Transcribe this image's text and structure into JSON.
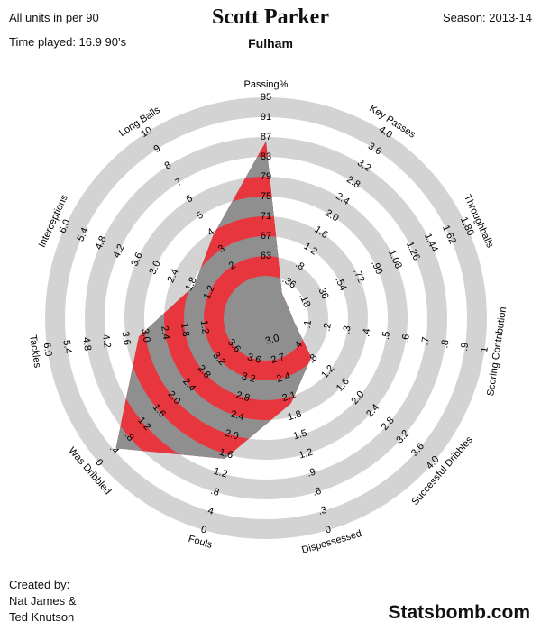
{
  "header": {
    "title": "Scott Parker",
    "team": "Fulham",
    "units_note": "All units in per 90",
    "time_played": "Time played: 16.9 90’s",
    "season": "Season: 2013-14"
  },
  "footer": {
    "credits": [
      "Created by:",
      "Nat James &",
      "Ted Knutson"
    ],
    "brand": "Statsbomb.com"
  },
  "colors": {
    "ring_light": "#d3d3d3",
    "shape_red": "#e8363f",
    "shape_gray": "#8f8f8f"
  },
  "chart_data": {
    "type": "radar",
    "title": "Scott Parker",
    "subtitle": "Fulham",
    "axes": [
      {
        "label": "Passing%",
        "ticks": [
          "63",
          "67",
          "71",
          "75",
          "79",
          "83",
          "87",
          "91",
          "95"
        ],
        "range": [
          59,
          95
        ],
        "value": 87
      },
      {
        "label": "Key Passes",
        "ticks": [
          ".36",
          ".8",
          "1.2",
          "1.6",
          "2.0",
          "2.4",
          "2.8",
          "3.2",
          "3.6",
          "4.0"
        ],
        "range": [
          0,
          4.0
        ],
        "value": 0.14
      },
      {
        "label": "Throughballs",
        "ticks": [
          ".18",
          ".36",
          ".54",
          ".72",
          ".90",
          "1.08",
          "1.26",
          "1.44",
          "1.62",
          "1.80"
        ],
        "range": [
          0,
          1.8
        ],
        "value": 0.02
      },
      {
        "label": "Scoring Contribution",
        "ticks": [
          ".1",
          ".2",
          ".3",
          ".4",
          ".5",
          ".6",
          ".7",
          ".8",
          ".9",
          "1"
        ],
        "range": [
          0,
          1
        ],
        "value": 0.03
      },
      {
        "label": "Successful Dribbles",
        "ticks": [
          ".4",
          ".8",
          "1.2",
          "1.6",
          "2.0",
          "2.4",
          "2.8",
          "3.2",
          "3.6",
          "4.0"
        ],
        "range": [
          0,
          4.0
        ],
        "value": 0.75
      },
      {
        "label": "Dispossessed",
        "ticks": [
          "3.0",
          "2.7",
          "2.4",
          "2.1",
          "1.8",
          "1.5",
          "1.2",
          ".9",
          ".6",
          ".3",
          "0"
        ],
        "range": [
          3.0,
          0
        ],
        "value": 2.0
      },
      {
        "label": "Fouls",
        "ticks": [
          "3.6",
          "3.2",
          "2.8",
          "2.4",
          "2.0",
          "1.6",
          "1.2",
          ".8",
          ".4",
          "0"
        ],
        "range": [
          4.0,
          0
        ],
        "value": 1.5
      },
      {
        "label": "Was Dribbled",
        "ticks": [
          "3.6",
          "3.2",
          "2.8",
          "2.4",
          "2.0",
          "1.6",
          "1.2",
          ".8",
          ".4",
          "0"
        ],
        "range": [
          4.0,
          0
        ],
        "value": 0.45
      },
      {
        "label": "Tackles",
        "ticks": [
          "1.2",
          "1.8",
          "2.4",
          "3.0",
          "3.6",
          "4.2",
          "4.8",
          "5.4",
          "6.0"
        ],
        "range": [
          0,
          6.0
        ],
        "value": 3.2
      },
      {
        "label": "Interceptions",
        "ticks": [
          "1.2",
          "1.8",
          "2.4",
          "3.0",
          "3.6",
          "4.2",
          "4.8",
          "5.4",
          "6.0"
        ],
        "range": [
          0,
          6.0
        ],
        "value": 1.7
      },
      {
        "label": "Long Balls",
        "ticks": [
          "2",
          "3",
          "4",
          "5",
          "6",
          "7",
          "8",
          "9",
          "10"
        ],
        "range": [
          0,
          10
        ],
        "value": 3.8
      }
    ],
    "rings": 5,
    "legend": "none"
  }
}
